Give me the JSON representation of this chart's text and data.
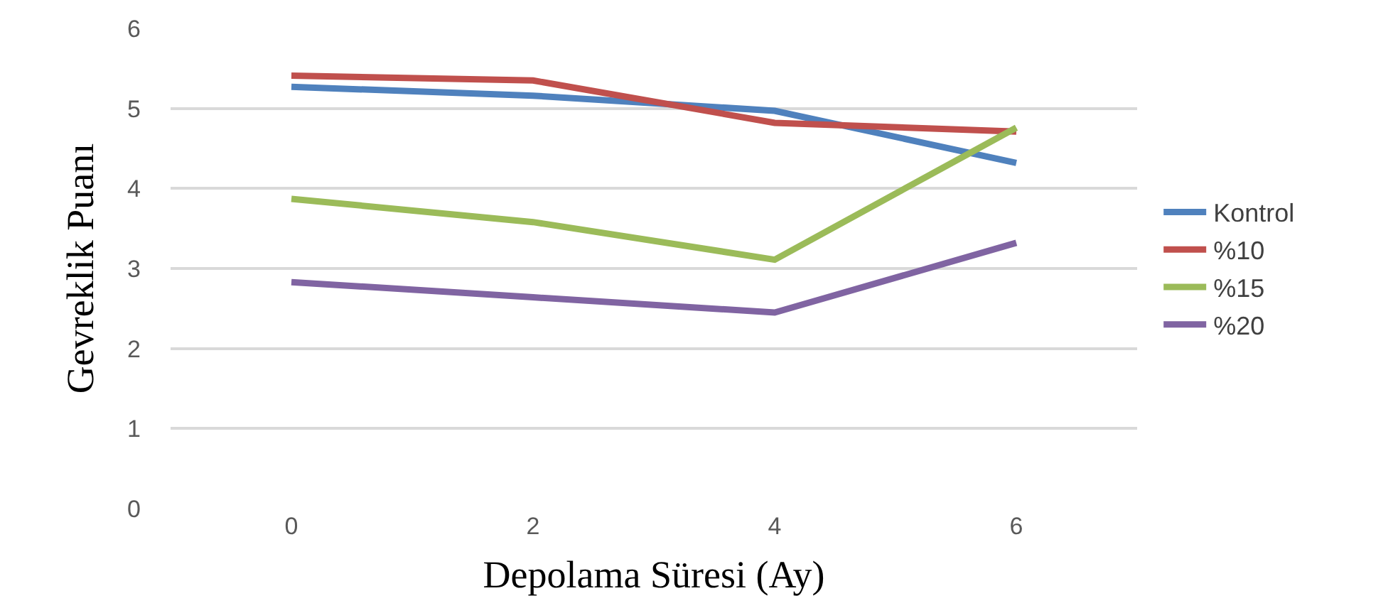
{
  "chart_data": {
    "type": "line",
    "xlabel": "Depolama Süresi (Ay)",
    "ylabel": "Gevreklik Puanı",
    "categories": [
      "0",
      "2",
      "4",
      "6"
    ],
    "series": [
      {
        "name": "Kontrol",
        "color": "#4f81bd",
        "values": [
          5.27,
          5.16,
          4.97,
          4.32
        ]
      },
      {
        "name": "%10",
        "color": "#c0504d",
        "values": [
          5.41,
          5.35,
          4.82,
          4.71
        ]
      },
      {
        "name": "%15",
        "color": "#9bbb59",
        "values": [
          3.87,
          3.58,
          3.11,
          4.76
        ]
      },
      {
        "name": "%20",
        "color": "#8064a2",
        "values": [
          2.83,
          2.64,
          2.45,
          3.32
        ]
      }
    ],
    "ylim": [
      0,
      6
    ],
    "yticks": [
      0,
      1,
      2,
      3,
      4,
      5,
      6
    ],
    "grid": "y",
    "legend": "right",
    "marker": "none",
    "line_style": "solid"
  }
}
